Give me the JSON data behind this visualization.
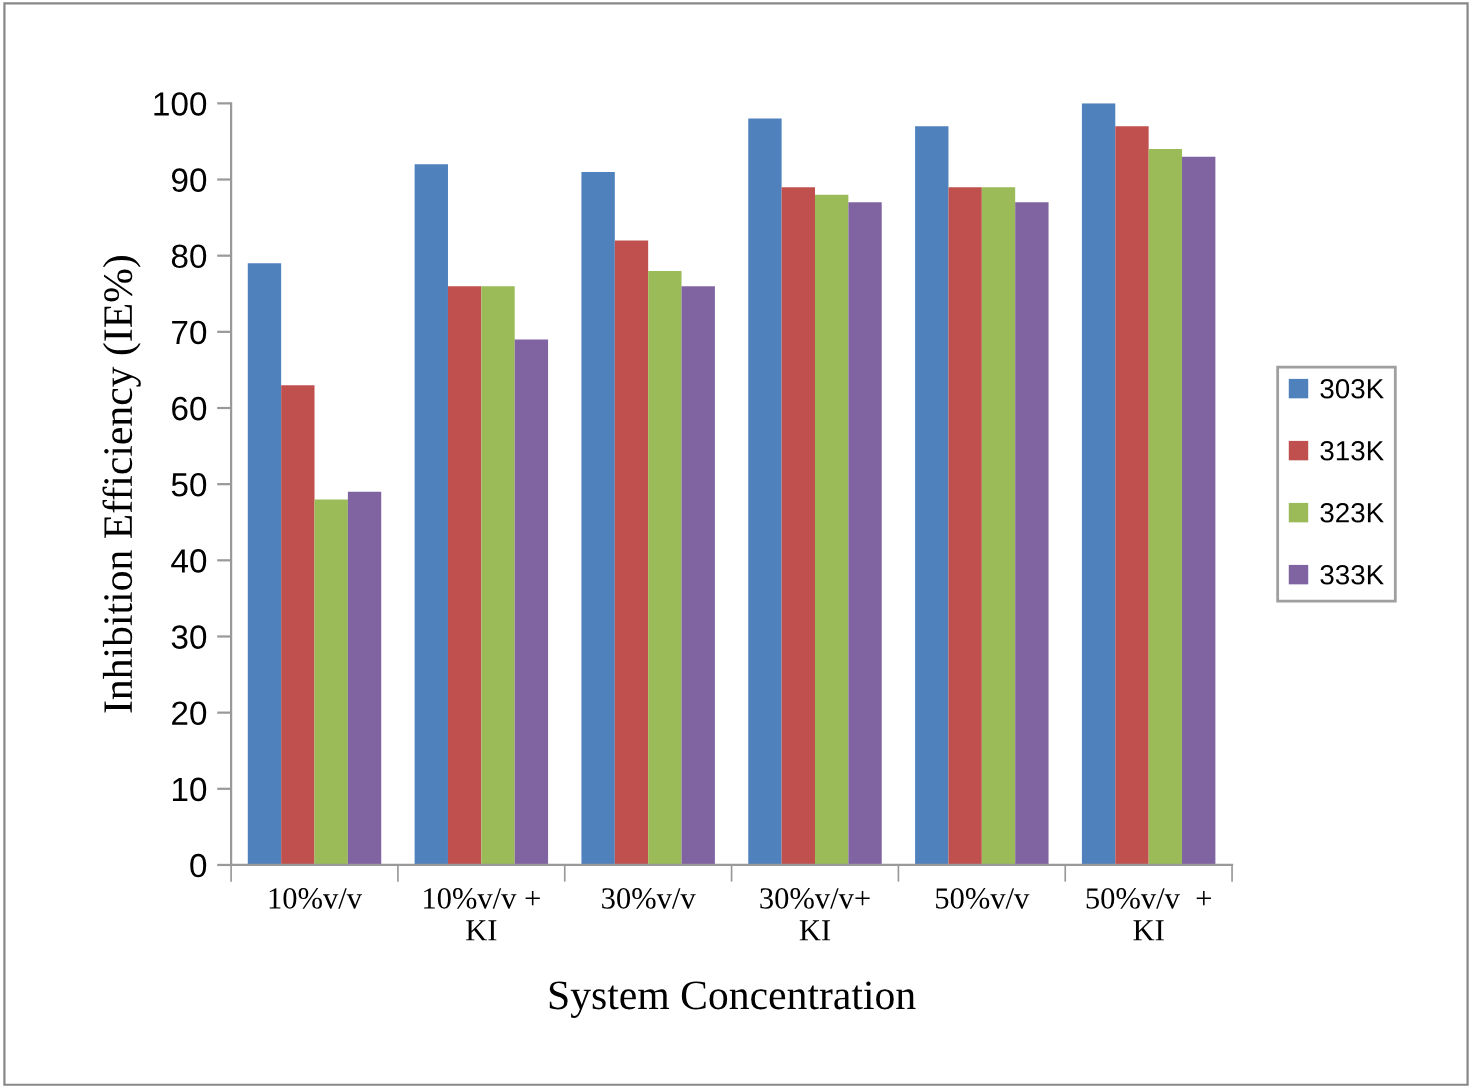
{
  "chart_data": {
    "type": "bar",
    "xlabel": "System Concentration",
    "ylabel": "Inhibition Efficiency (IE%)",
    "categories": [
      "10%v/v",
      "10%v/v +\nKI",
      "30%v/v",
      "30%v/v+\nKI",
      "50%v/v",
      "50%v/v  +\nKI"
    ],
    "series": [
      {
        "name": "303K",
        "color": "#4f81bd",
        "values": [
          79,
          92,
          91,
          98,
          97,
          100
        ]
      },
      {
        "name": "313K",
        "color": "#c0504d",
        "values": [
          63,
          76,
          82,
          89,
          89,
          97
        ]
      },
      {
        "name": "323K",
        "color": "#9bbb59",
        "values": [
          48,
          76,
          78,
          88,
          89,
          94
        ]
      },
      {
        "name": "333K",
        "color": "#8064a2",
        "values": [
          49,
          69,
          76,
          87,
          87,
          93
        ]
      }
    ],
    "ylim": [
      0,
      100
    ],
    "yticks": [
      0,
      10,
      20,
      30,
      40,
      50,
      60,
      70,
      80,
      90,
      100
    ],
    "grid": false,
    "legend": "right"
  }
}
